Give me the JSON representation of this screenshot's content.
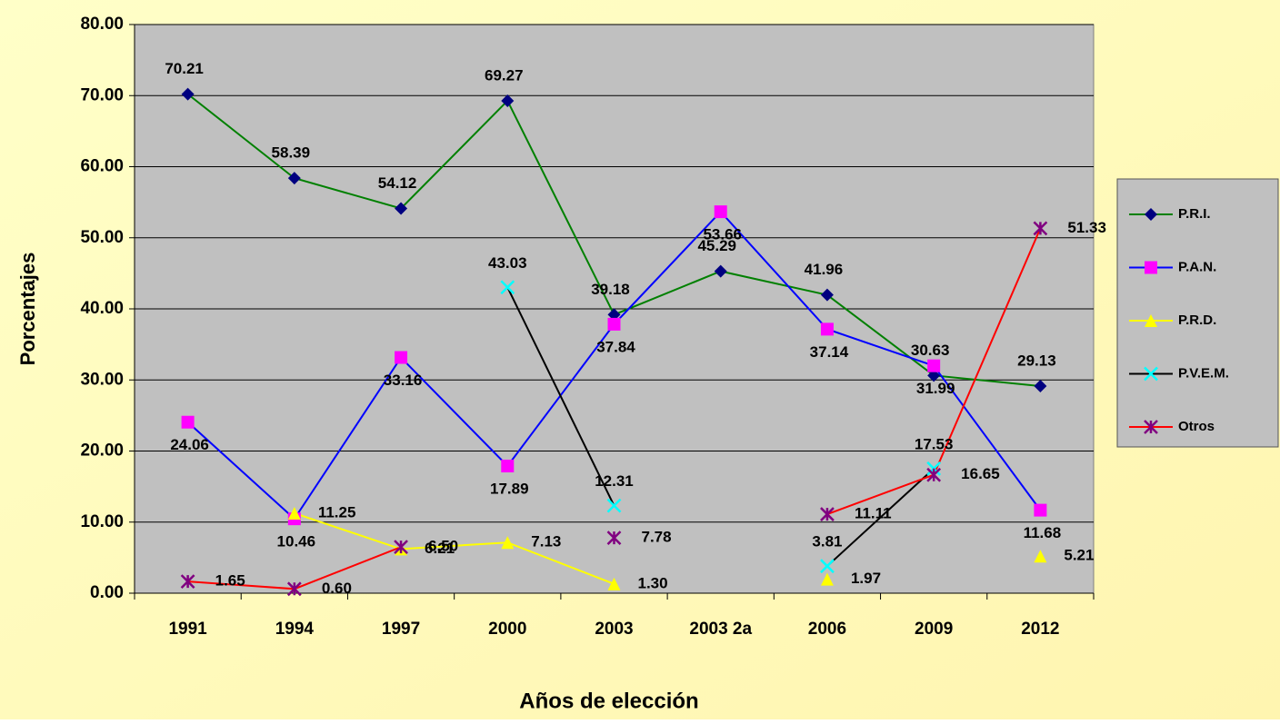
{
  "chart_data": {
    "type": "line",
    "x_label": "Años de elección",
    "y_label": "Porcentajes",
    "categories": [
      "1991",
      "1994",
      "1997",
      "2000",
      "2003",
      "2003 2a",
      "2006",
      "2009",
      "2012"
    ],
    "ylim": [
      0,
      80
    ],
    "yticks": [
      {
        "value": 0,
        "label": "0.00"
      },
      {
        "value": 10,
        "label": "10.00"
      },
      {
        "value": 20,
        "label": "20.00"
      },
      {
        "value": 30,
        "label": "30.00"
      },
      {
        "value": 40,
        "label": "40.00"
      },
      {
        "value": 50,
        "label": "50.00"
      },
      {
        "value": 60,
        "label": "60.00"
      },
      {
        "value": 70,
        "label": "70.00"
      },
      {
        "value": 80,
        "label": "80.00"
      }
    ],
    "grid": true,
    "legend": "right",
    "series": [
      {
        "name": "P.R.I.",
        "color": "#008000",
        "marker": "diamond",
        "marker_color": "#000080",
        "values": [
          70.21,
          58.39,
          54.12,
          69.27,
          39.18,
          45.29,
          41.96,
          30.63,
          29.13
        ],
        "value_labels": [
          "70.21",
          "58.39",
          "54.12",
          "69.27",
          "39.18",
          "45.29",
          "41.96",
          "30.63",
          "29.13"
        ]
      },
      {
        "name": "P.A.N.",
        "color": "#0000ff",
        "marker": "square",
        "marker_color": "#ff00ff",
        "values": [
          24.06,
          10.46,
          33.16,
          17.89,
          37.84,
          53.66,
          37.14,
          31.99,
          11.68
        ],
        "value_labels": [
          "24.06",
          "10.46",
          "33.16",
          "17.89",
          "37.84",
          "53.66",
          "37.14",
          "31.99",
          "11.68"
        ]
      },
      {
        "name": "P.R.D.",
        "color": "#ffff00",
        "marker": "triangle",
        "marker_color": "#ffff00",
        "values": [
          null,
          11.25,
          6.21,
          7.13,
          1.3,
          null,
          1.97,
          null,
          5.21
        ],
        "value_labels": [
          null,
          "11.25",
          "6.21",
          "7.13",
          "1.30",
          null,
          "1.97",
          null,
          "5.21"
        ]
      },
      {
        "name": "P.V.E.M.",
        "color": "#000000",
        "marker": "x",
        "marker_color": "#00ffff",
        "values": [
          null,
          null,
          null,
          43.03,
          12.31,
          null,
          3.81,
          17.53,
          null
        ],
        "value_labels": [
          null,
          null,
          null,
          "43.03",
          "12.31",
          null,
          "3.81",
          "17.53",
          null
        ]
      },
      {
        "name": "Otros",
        "color": "#ff0000",
        "marker": "star",
        "marker_color": "#800080",
        "values": [
          1.65,
          0.6,
          6.5,
          null,
          7.78,
          null,
          11.11,
          16.65,
          51.33
        ],
        "value_labels": [
          "1.65",
          "0.60",
          "6.50",
          null,
          "7.78",
          null,
          "11.11",
          "16.65",
          "51.33"
        ]
      }
    ]
  }
}
